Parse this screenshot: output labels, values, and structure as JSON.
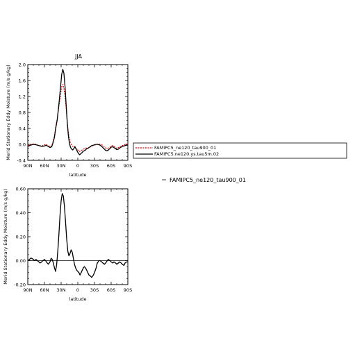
{
  "chart_data": [
    {
      "type": "line",
      "title": "JJA",
      "xlabel": "latitude",
      "ylabel": "Merid Stationary Eddy Moisture (m/s g/kg)",
      "x_tick_labels": [
        "90N",
        "60N",
        "30N",
        "0",
        "30S",
        "60S",
        "90S"
      ],
      "x_ticks": [
        90,
        60,
        30,
        0,
        -30,
        -60,
        -90
      ],
      "xlim": [
        90,
        -90
      ],
      "ylim": [
        -0.4,
        2.0
      ],
      "y_ticks": [
        -0.4,
        0.0,
        0.4,
        0.8,
        1.2,
        1.6,
        2.0
      ],
      "y_tick_labels": [
        "-0.4",
        "0.0",
        "0.4",
        "0.8",
        "1.2",
        "1.6",
        "2.0"
      ],
      "series": [
        {
          "name": "FAMIPC5_ne120_tau900_01",
          "color": "#e00000",
          "style": "dashed",
          "x": [
            90,
            85,
            80,
            75,
            70,
            65,
            60,
            57,
            55,
            52,
            50,
            47,
            45,
            42,
            40,
            37,
            35,
            33,
            31,
            29,
            27,
            25,
            23,
            21,
            19,
            17,
            15,
            13,
            11,
            9,
            7,
            5,
            3,
            0,
            -3,
            -5,
            -8,
            -10,
            -13,
            -15,
            -18,
            -20,
            -23,
            -25,
            -28,
            -30,
            -33,
            -35,
            -38,
            -40,
            -43,
            -45,
            -48,
            -50,
            -53,
            -55,
            -58,
            -60,
            -63,
            -65,
            -68,
            -70,
            -73,
            -75,
            -78,
            -80,
            -83,
            -85,
            -88,
            -90
          ],
          "y": [
            -0.03,
            0.0,
            0.01,
            0.0,
            -0.03,
            -0.04,
            -0.01,
            0.0,
            -0.02,
            -0.04,
            -0.06,
            -0.04,
            0.05,
            0.22,
            0.42,
            0.65,
            0.85,
            1.05,
            1.25,
            1.45,
            1.5,
            1.4,
            1.2,
            0.9,
            0.55,
            0.3,
            0.12,
            0.03,
            -0.03,
            -0.05,
            -0.04,
            -0.06,
            -0.1,
            -0.14,
            -0.18,
            -0.16,
            -0.14,
            -0.12,
            -0.1,
            -0.09,
            -0.1,
            -0.08,
            -0.06,
            -0.04,
            -0.03,
            -0.02,
            -0.01,
            0.0,
            0.01,
            0.0,
            -0.01,
            -0.03,
            -0.06,
            -0.09,
            -0.1,
            -0.09,
            -0.07,
            -0.04,
            -0.03,
            -0.05,
            -0.08,
            -0.1,
            -0.08,
            -0.06,
            -0.05,
            -0.03,
            -0.02,
            0.0,
            0.01,
            0.0
          ]
        },
        {
          "name": "FAMIPC5.ne120.ys.tau5m.02",
          "color": "#000000",
          "style": "solid",
          "x": [
            90,
            85,
            80,
            75,
            70,
            65,
            60,
            57,
            55,
            52,
            50,
            47,
            45,
            42,
            40,
            37,
            35,
            33,
            31,
            29,
            27,
            25,
            23,
            21,
            19,
            17,
            15,
            13,
            11,
            9,
            7,
            5,
            3,
            0,
            -3,
            -5,
            -8,
            -10,
            -13,
            -15,
            -18,
            -20,
            -23,
            -25,
            -28,
            -30,
            -33,
            -35,
            -38,
            -40,
            -43,
            -45,
            -48,
            -50,
            -53,
            -55,
            -58,
            -60,
            -63,
            -65,
            -68,
            -70,
            -73,
            -75,
            -78,
            -80,
            -83,
            -85,
            -88,
            -90
          ],
          "y": [
            -0.05,
            -0.02,
            0.0,
            -0.01,
            -0.03,
            -0.05,
            -0.04,
            -0.02,
            -0.04,
            -0.06,
            -0.08,
            -0.06,
            0.02,
            0.18,
            0.38,
            0.62,
            0.88,
            1.15,
            1.45,
            1.75,
            1.88,
            1.78,
            1.45,
            1.0,
            0.55,
            0.22,
            0.02,
            -0.08,
            -0.12,
            -0.14,
            -0.1,
            -0.06,
            -0.12,
            -0.2,
            -0.26,
            -0.24,
            -0.2,
            -0.17,
            -0.15,
            -0.12,
            -0.1,
            -0.08,
            -0.05,
            -0.03,
            -0.02,
            -0.01,
            0.0,
            0.0,
            -0.01,
            -0.02,
            -0.05,
            -0.08,
            -0.12,
            -0.15,
            -0.16,
            -0.14,
            -0.1,
            -0.07,
            -0.06,
            -0.08,
            -0.11,
            -0.13,
            -0.12,
            -0.09,
            -0.07,
            -0.05,
            -0.04,
            -0.03,
            -0.02,
            -0.02
          ]
        }
      ],
      "legend": {
        "placement": "right",
        "entries": [
          "FAMIPC5_ne120_tau900_01",
          "FAMIPC5.ne120.ys.tau5m.02"
        ]
      }
    },
    {
      "type": "line",
      "title": "",
      "xlabel": "latitude",
      "ylabel": "Merid Stationary Eddy Moisture (m/s g/kg)",
      "x_tick_labels": [
        "90N",
        "60N",
        "30N",
        "0",
        "30S",
        "60S",
        "90S"
      ],
      "x_ticks": [
        90,
        60,
        30,
        0,
        -30,
        -60,
        -90
      ],
      "xlim": [
        90,
        -90
      ],
      "ylim": [
        -0.2,
        0.6
      ],
      "y_ticks": [
        -0.2,
        0.0,
        0.2,
        0.4,
        0.6
      ],
      "y_tick_labels": [
        "-0.20",
        "0.00",
        "0.20",
        "0.40",
        "0.60"
      ],
      "series": [
        {
          "name": "",
          "color": "#000000",
          "style": "solid",
          "x": [
            90,
            87,
            85,
            83,
            80,
            78,
            75,
            73,
            70,
            68,
            65,
            63,
            60,
            58,
            55,
            53,
            50,
            48,
            46,
            44,
            42,
            40,
            38,
            36,
            34,
            32,
            30,
            28,
            26,
            24,
            22,
            20,
            18,
            16,
            14,
            12,
            10,
            8,
            6,
            4,
            2,
            0,
            -2,
            -4,
            -6,
            -8,
            -10,
            -12,
            -15,
            -18,
            -20,
            -23,
            -25,
            -28,
            -30,
            -33,
            -35,
            -38,
            -40,
            -43,
            -45,
            -48,
            -50,
            -53,
            -55,
            -58,
            -60,
            -63,
            -65,
            -68,
            -70,
            -73,
            -75,
            -78,
            -80,
            -83,
            -85,
            -88,
            -90
          ],
          "y": [
            0.0,
            0.01,
            0.02,
            0.02,
            0.01,
            0.0,
            0.01,
            0.0,
            -0.01,
            -0.02,
            -0.01,
            0.0,
            0.01,
            0.0,
            -0.02,
            -0.03,
            -0.01,
            0.02,
            0.01,
            -0.02,
            -0.06,
            -0.09,
            -0.03,
            0.08,
            0.22,
            0.38,
            0.5,
            0.56,
            0.54,
            0.45,
            0.32,
            0.18,
            0.08,
            0.04,
            0.06,
            0.09,
            0.07,
            0.02,
            -0.03,
            -0.06,
            -0.08,
            -0.09,
            -0.1,
            -0.12,
            -0.1,
            -0.08,
            -0.06,
            -0.05,
            -0.07,
            -0.1,
            -0.12,
            -0.13,
            -0.14,
            -0.12,
            -0.1,
            -0.06,
            -0.02,
            0.0,
            0.0,
            -0.01,
            -0.02,
            -0.03,
            -0.02,
            0.0,
            0.01,
            0.0,
            -0.01,
            -0.02,
            -0.01,
            -0.02,
            -0.03,
            -0.02,
            -0.01,
            -0.02,
            -0.03,
            -0.04,
            -0.02,
            -0.01,
            -0.01
          ]
        }
      ]
    }
  ],
  "side_label": "FAMIPC5_ne120_tau900_01"
}
